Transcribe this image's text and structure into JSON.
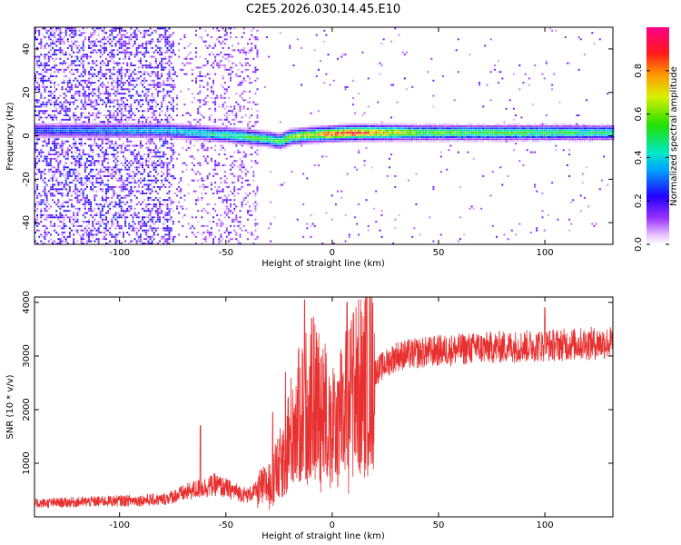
{
  "title": "C2E5.2026.030.14.45.E10",
  "chart_data": [
    {
      "type": "heatmap",
      "xlabel": "Height of straight line (km)",
      "ylabel": "Frequency (Hz)",
      "xlim": [
        -140,
        132
      ],
      "ylim": [
        -50,
        50
      ],
      "xticks": [
        -100,
        -50,
        0,
        50,
        100
      ],
      "yticks": [
        -40,
        -20,
        0,
        20,
        40
      ],
      "colorbar": {
        "label": "Normalized spectral amplitude",
        "range": [
          0.0,
          1.0
        ],
        "ticks": [
          0.0,
          0.2,
          0.4,
          0.6,
          0.8
        ],
        "tick_labels": [
          "0.0",
          "0.2",
          "0.4",
          "0.6",
          "0.8"
        ]
      },
      "ridge": {
        "x": [
          -140,
          -110,
          -80,
          -50,
          -40,
          -30,
          -25,
          -20,
          -10,
          0,
          10,
          40,
          100,
          132
        ],
        "center_hz": [
          2,
          2,
          2,
          0,
          -1,
          -2,
          -3,
          -1,
          0,
          0.5,
          1,
          1,
          1,
          1
        ],
        "peak_amplitude": [
          0.3,
          0.35,
          0.4,
          0.5,
          0.55,
          0.55,
          0.6,
          0.65,
          0.7,
          0.9,
          0.95,
          0.6,
          0.55,
          0.5
        ]
      }
    },
    {
      "type": "line",
      "xlabel": "Height of straight line (km)",
      "ylabel": "SNR (10 * v/v)",
      "xlim": [
        -140,
        132
      ],
      "ylim": [
        0,
        4100
      ],
      "xticks": [
        -100,
        -50,
        0,
        50,
        100
      ],
      "yticks": [
        1000,
        2000,
        3000,
        4000
      ],
      "color": "#e83030",
      "envelope_x": [
        -140,
        -100,
        -80,
        -65,
        -55,
        -40,
        -30,
        -25,
        -20,
        -15,
        -10,
        -5,
        0,
        10,
        20,
        30,
        50,
        70,
        100,
        132
      ],
      "envelope_y": [
        250,
        300,
        320,
        500,
        600,
        400,
        600,
        900,
        1500,
        1900,
        2200,
        2100,
        1600,
        2300,
        2700,
        3000,
        3100,
        3150,
        3200,
        3250
      ],
      "spikes": [
        {
          "x": -62,
          "y": 1700
        },
        {
          "x": -28,
          "y": 1950
        },
        {
          "x": -22,
          "y": 2700
        },
        {
          "x": -13,
          "y": 4050
        },
        {
          "x": 7,
          "y": 4000
        },
        {
          "x": 10,
          "y": 3800
        },
        {
          "x": 68,
          "y": 3400
        },
        {
          "x": 100,
          "y": 3900
        }
      ]
    }
  ]
}
